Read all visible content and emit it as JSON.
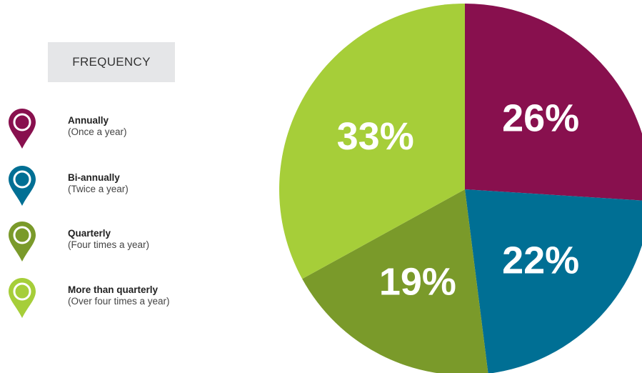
{
  "legend": {
    "title": "FREQUENCY",
    "items": [
      {
        "label": "Annually",
        "sub": "(Once a year)",
        "color": "#88104e",
        "icon": "location-pin-icon"
      },
      {
        "label": "Bi-annually",
        "sub": "(Twice a year)",
        "color": "#006f94",
        "icon": "location-pin-icon"
      },
      {
        "label": "Quarterly",
        "sub": "(Four times a year)",
        "color": "#7a9a2a",
        "icon": "location-pin-icon"
      },
      {
        "label": "More than quarterly",
        "sub": "(Over four times a year)",
        "color": "#a6ce39",
        "icon": "location-pin-icon"
      }
    ]
  },
  "chart_data": {
    "type": "pie",
    "title": "",
    "categories": [
      "Annually",
      "Bi-annually",
      "Quarterly",
      "More than quarterly"
    ],
    "values": [
      26,
      22,
      19,
      33
    ],
    "labels": [
      "26%",
      "22%",
      "19%",
      "33%"
    ],
    "colors": [
      "#88104e",
      "#006f94",
      "#7a9a2a",
      "#a6ce39"
    ],
    "start": "12 o'clock",
    "direction": "clockwise",
    "legend_placement": "left"
  }
}
